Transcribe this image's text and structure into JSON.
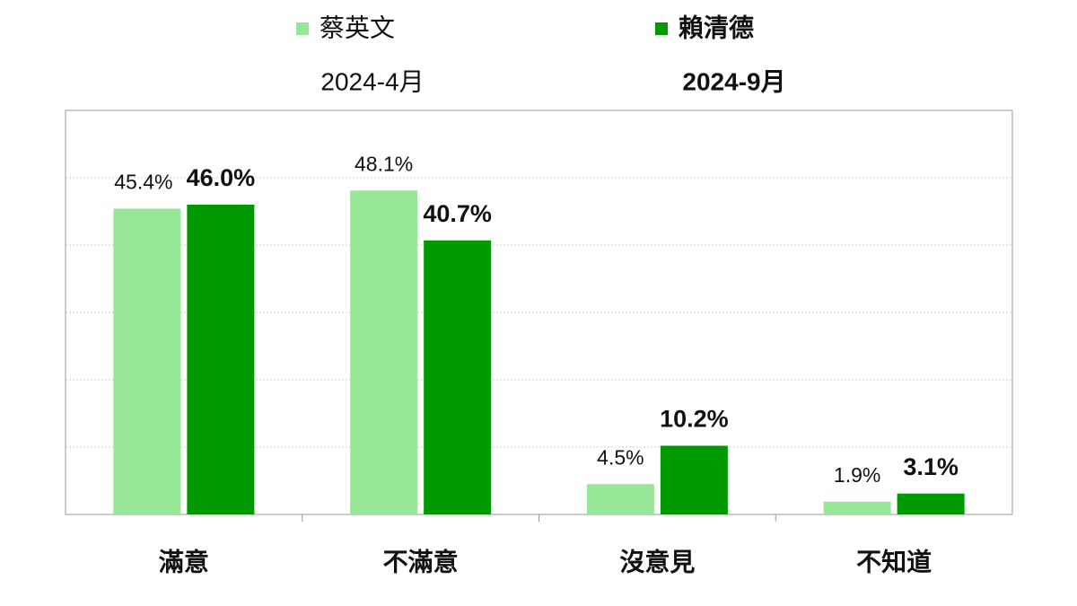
{
  "chart_data": {
    "type": "bar",
    "categories": [
      "滿意",
      "不滿意",
      "沒意見",
      "不知道"
    ],
    "series": [
      {
        "name": "蔡英文",
        "period": "2024-4月",
        "color": "#98e698",
        "values": [
          45.4,
          48.1,
          4.5,
          1.9
        ],
        "value_labels": [
          "45.4%",
          "48.1%",
          "4.5%",
          "1.9%"
        ]
      },
      {
        "name": "賴清德",
        "period": "2024-9月",
        "color": "#009900",
        "values": [
          46.0,
          40.7,
          10.2,
          3.1
        ],
        "value_labels": [
          "46.0%",
          "40.7%",
          "10.2%",
          "3.1%"
        ]
      }
    ],
    "ylim": [
      0,
      60
    ],
    "yticks": [
      0,
      10,
      20,
      30,
      40,
      50,
      60
    ],
    "grid": true
  }
}
